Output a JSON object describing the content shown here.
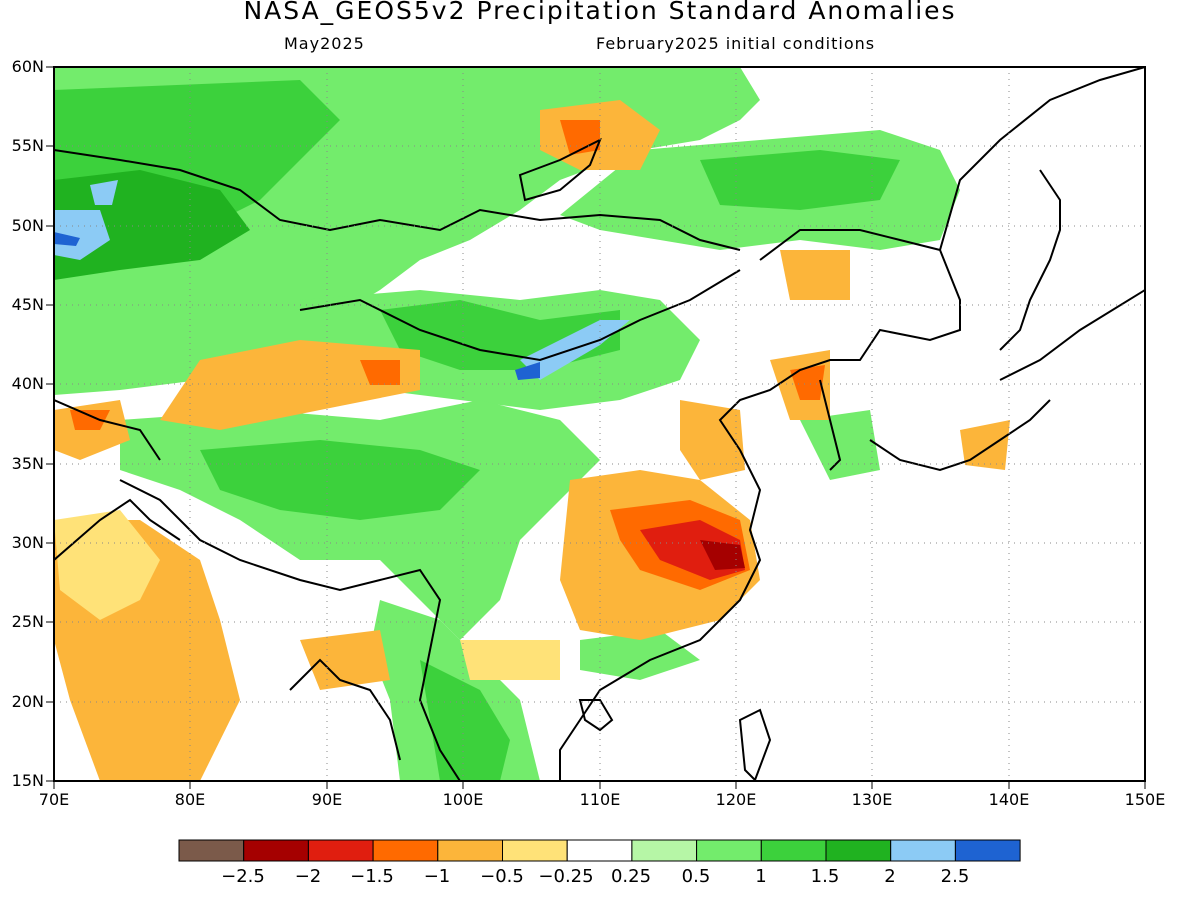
{
  "title": "NASA_GEOS5v2 Precipitation Standard Anomalies",
  "subtitle_left": "May2025",
  "subtitle_right": "February2025 initial conditions",
  "map": {
    "lat_labels": [
      "60N",
      "55N",
      "50N",
      "45N",
      "40N",
      "35N",
      "30N",
      "25N",
      "20N",
      "15N"
    ],
    "lon_labels": [
      "70E",
      "80E",
      "90E",
      "100E",
      "110E",
      "120E",
      "130E",
      "140E",
      "150E"
    ],
    "lat_range": [
      15,
      60
    ],
    "lon_range": [
      70,
      150
    ],
    "grid": "dotted"
  },
  "colorbar": {
    "colors": [
      "#7b5a4a",
      "#a50000",
      "#e01e0f",
      "#ff6a00",
      "#fcb53a",
      "#ffe278",
      "#ffffff",
      "#b6f6a6",
      "#73ec6c",
      "#3cd13c",
      "#20b220",
      "#8ccbf5",
      "#1e63d2"
    ],
    "labels": [
      "−2.5",
      "−2",
      "−1.5",
      "−1",
      "−0.5",
      "−0.25",
      "0.25",
      "0.5",
      "1",
      "1.5",
      "2",
      "2.5"
    ]
  }
}
